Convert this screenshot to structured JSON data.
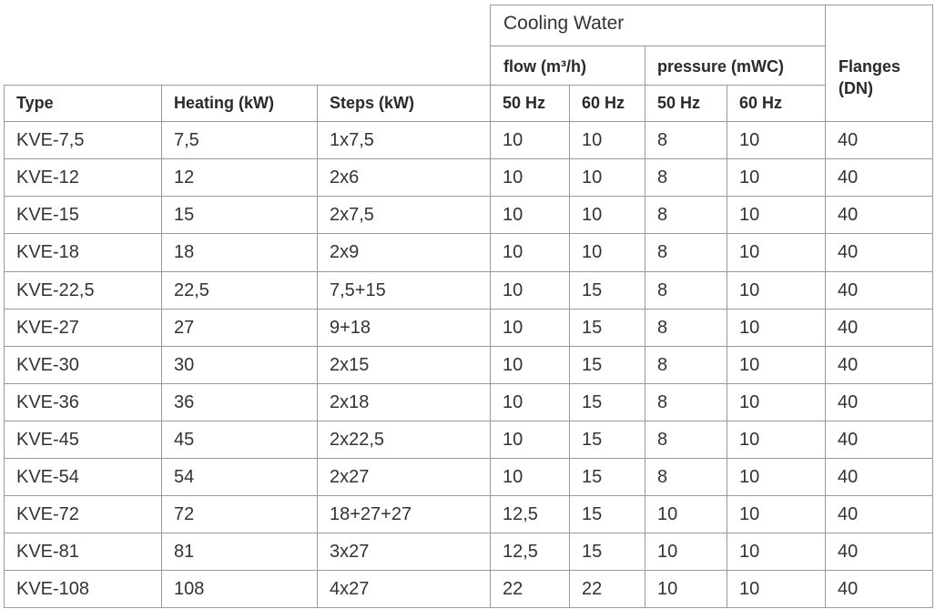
{
  "header": {
    "group": "Cooling Water",
    "flow": "flow (m³/h)",
    "pressure": "pressure (mWC)",
    "flanges": "Flanges (DN)",
    "columns": [
      "Type",
      "Heating (kW)",
      "Steps (kW)",
      "50 Hz",
      "60 Hz",
      "50 Hz",
      "60 Hz"
    ]
  },
  "table": {
    "rows": [
      [
        "KVE-7,5",
        "7,5",
        "1x7,5",
        "10",
        "10",
        "8",
        "10",
        "40"
      ],
      [
        "KVE-12",
        "12",
        "2x6",
        "10",
        "10",
        "8",
        "10",
        "40"
      ],
      [
        "KVE-15",
        "15",
        "2x7,5",
        "10",
        "10",
        "8",
        "10",
        "40"
      ],
      [
        "KVE-18",
        "18",
        "2x9",
        "10",
        "10",
        "8",
        "10",
        "40"
      ],
      [
        "KVE-22,5",
        "22,5",
        "7,5+15",
        "10",
        "15",
        "8",
        "10",
        "40"
      ],
      [
        "KVE-27",
        "27",
        "9+18",
        "10",
        "15",
        "8",
        "10",
        "40"
      ],
      [
        "KVE-30",
        "30",
        "2x15",
        "10",
        "15",
        "8",
        "10",
        "40"
      ],
      [
        "KVE-36",
        "36",
        "2x18",
        "10",
        "15",
        "8",
        "10",
        "40"
      ],
      [
        "KVE-45",
        "45",
        "2x22,5",
        "10",
        "15",
        "8",
        "10",
        "40"
      ],
      [
        "KVE-54",
        "54",
        "2x27",
        "10",
        "15",
        "8",
        "10",
        "40"
      ],
      [
        "KVE-72",
        "72",
        "18+27+27",
        "12,5",
        "15",
        "10",
        "10",
        "40"
      ],
      [
        "KVE-81",
        "81",
        "3x27",
        "12,5",
        "15",
        "10",
        "10",
        "40"
      ],
      [
        "KVE-108",
        "108",
        "4x27",
        "22",
        "22",
        "10",
        "10",
        "40"
      ]
    ]
  }
}
